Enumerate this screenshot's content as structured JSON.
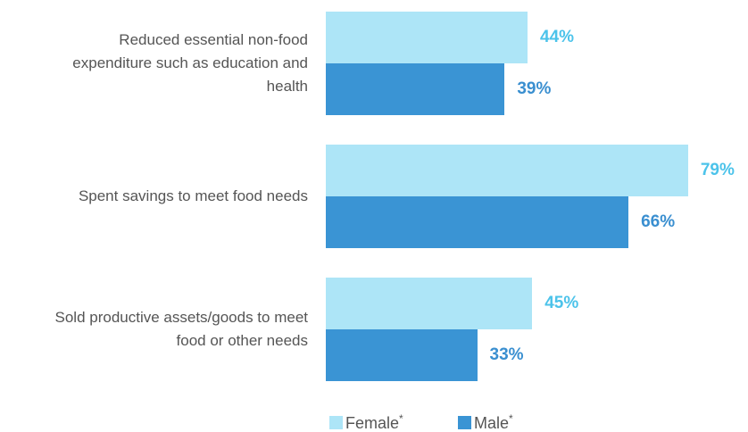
{
  "chart_data": {
    "type": "bar",
    "orientation": "horizontal",
    "categories": [
      "Reduced essential non-food expenditure such as education and health",
      "Spent savings to meet food needs",
      "Sold productive assets/goods to meet food or other needs"
    ],
    "series": [
      {
        "name": "Female",
        "color": "#ade5f7",
        "label_color": "#4cc3ea",
        "values": [
          44,
          79,
          45
        ],
        "value_labels": [
          "44%",
          "79%",
          "45%"
        ]
      },
      {
        "name": "Male",
        "color": "#3a94d4",
        "label_color": "#3a8fd0",
        "values": [
          39,
          66,
          33
        ],
        "value_labels": [
          "39%",
          "66%",
          "33%"
        ]
      }
    ],
    "legend_suffix": "*",
    "xlim": [
      0,
      80
    ]
  }
}
